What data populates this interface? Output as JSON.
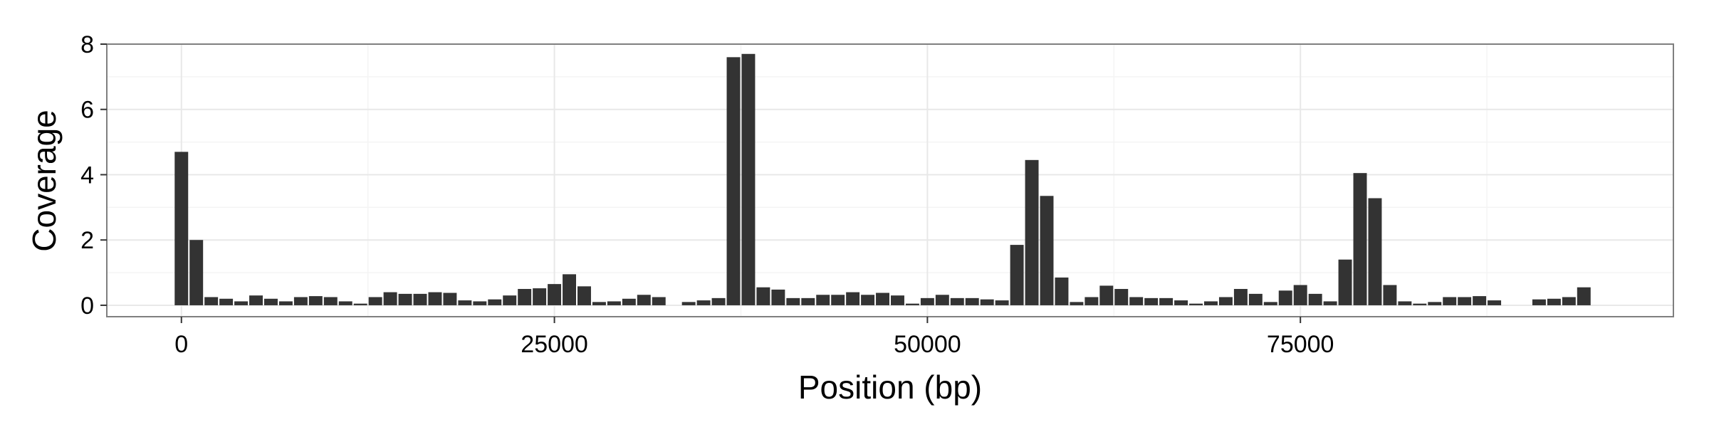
{
  "chart_data": {
    "type": "bar",
    "xlabel": "Position (bp)",
    "ylabel": "Coverage",
    "xlim": [
      -5000,
      100000
    ],
    "ylim": [
      -0.35,
      8
    ],
    "x_ticks": [
      "0",
      "25000",
      "50000",
      "75000"
    ],
    "x_tick_values": [
      0,
      25000,
      50000,
      75000
    ],
    "y_ticks": [
      "0",
      "2",
      "4",
      "6",
      "8"
    ],
    "y_tick_values": [
      0,
      2,
      4,
      6,
      8
    ],
    "bar_width": 1000,
    "grid": true,
    "bar_color": "#333333",
    "x": [
      0,
      1000,
      2000,
      3000,
      4000,
      5000,
      6000,
      7000,
      8000,
      9000,
      10000,
      11000,
      12000,
      13000,
      14000,
      15000,
      16000,
      17000,
      18000,
      19000,
      20000,
      21000,
      22000,
      23000,
      24000,
      25000,
      26000,
      27000,
      28000,
      29000,
      30000,
      31000,
      32000,
      34000,
      35000,
      36000,
      37000,
      38000,
      39000,
      40000,
      41000,
      42000,
      43000,
      44000,
      45000,
      46000,
      47000,
      48000,
      49000,
      50000,
      51000,
      52000,
      53000,
      54000,
      55000,
      56000,
      57000,
      58000,
      59000,
      60000,
      61000,
      62000,
      63000,
      64000,
      65000,
      66000,
      67000,
      68000,
      69000,
      70000,
      71000,
      72000,
      73000,
      74000,
      75000,
      76000,
      77000,
      78000,
      79000,
      80000,
      81000,
      82000,
      83000,
      84000,
      85000,
      86000,
      87000,
      88000,
      91000,
      92000,
      93000,
      94000
    ],
    "values": [
      4.7,
      2.0,
      0.25,
      0.2,
      0.12,
      0.3,
      0.2,
      0.12,
      0.25,
      0.28,
      0.25,
      0.12,
      0.05,
      0.25,
      0.4,
      0.35,
      0.35,
      0.4,
      0.38,
      0.15,
      0.12,
      0.18,
      0.3,
      0.5,
      0.52,
      0.65,
      0.95,
      0.58,
      0.1,
      0.12,
      0.2,
      0.32,
      0.25,
      0.1,
      0.15,
      0.22,
      7.6,
      7.7,
      0.55,
      0.48,
      0.22,
      0.22,
      0.32,
      0.32,
      0.4,
      0.32,
      0.38,
      0.3,
      0.05,
      0.22,
      0.32,
      0.22,
      0.22,
      0.18,
      0.15,
      1.85,
      4.45,
      3.35,
      0.85,
      0.1,
      0.25,
      0.6,
      0.5,
      0.25,
      0.22,
      0.22,
      0.15,
      0.05,
      0.12,
      0.25,
      0.5,
      0.35,
      0.1,
      0.45,
      0.62,
      0.35,
      0.12,
      1.4,
      4.05,
      3.28,
      0.62,
      0.12,
      0.05,
      0.1,
      0.25,
      0.25,
      0.28,
      0.15,
      0.18,
      0.2,
      0.25,
      0.55
    ]
  }
}
